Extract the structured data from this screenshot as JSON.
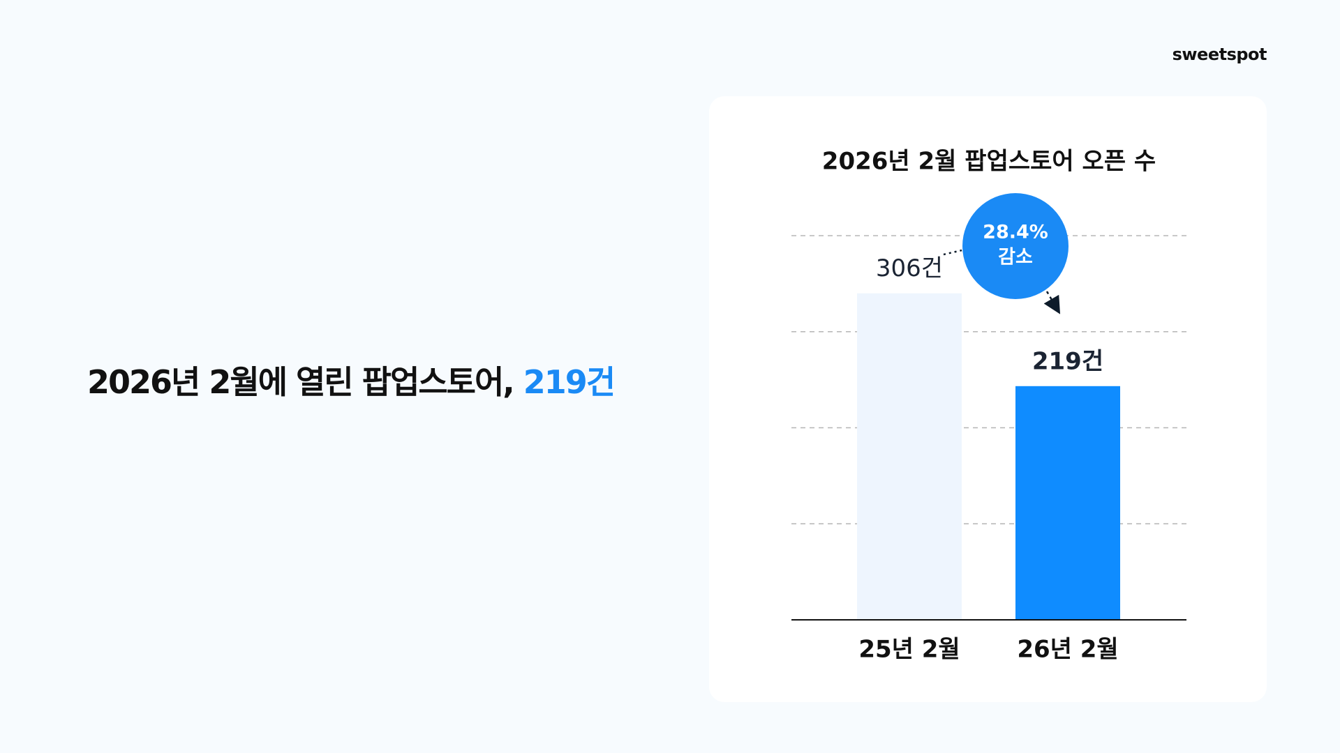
{
  "brand": "sweetspot",
  "headline": {
    "text": "2026년 2월에 열린 팝업스토어,",
    "highlight": "219건"
  },
  "chart_data": {
    "type": "bar",
    "title": "2026년 2월 팝업스토어 오픈 수",
    "categories": [
      "25년 2월",
      "26년 2월"
    ],
    "values": [
      306,
      219
    ],
    "value_labels": [
      "306건",
      "219건"
    ],
    "colors": [
      "#eef5fe",
      "#0f8cff"
    ],
    "ylim": [
      0,
      360
    ],
    "yticks": [
      90,
      180,
      270,
      360
    ],
    "show_ytick_labels": false,
    "grid": true,
    "annotation": [
      "28.4%",
      "감소"
    ]
  }
}
